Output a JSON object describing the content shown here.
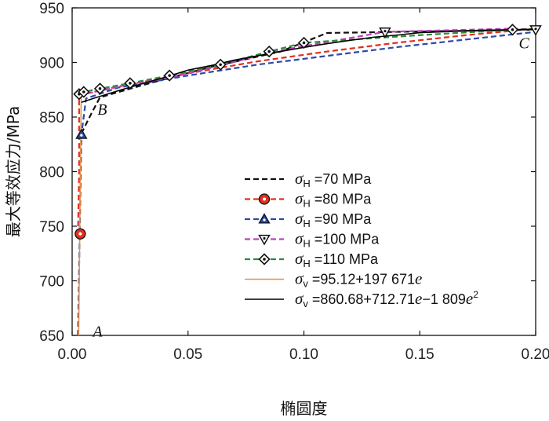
{
  "chart_data": {
    "type": "line",
    "xlabel": "椭圆度",
    "ylabel": "最大等效应力/MPa",
    "xlim": [
      0.0,
      0.2
    ],
    "ylim": [
      650,
      950
    ],
    "xticks": [
      "0.00",
      "0.05",
      "0.10",
      "0.15",
      "0.20"
    ],
    "yticks": [
      "650",
      "700",
      "750",
      "800",
      "850",
      "900",
      "950"
    ],
    "annotations": [
      {
        "text": "A",
        "x": 0.011,
        "y": 649
      },
      {
        "text": "B",
        "x": 0.013,
        "y": 852
      },
      {
        "text": "C",
        "x": 0.195,
        "y": 913
      }
    ],
    "series": [
      {
        "name": "σH=70 MPa",
        "sym": "σ",
        "sub": "H",
        "rest": "=70 MPa",
        "color": "#111111",
        "dashed": true,
        "marker": "none",
        "x": [
          0.004,
          0.008,
          0.012,
          0.03,
          0.06,
          0.09,
          0.11,
          0.14,
          0.17,
          0.2
        ],
        "y": [
          835,
          852,
          868,
          879,
          896,
          910,
          927,
          928,
          929,
          930
        ]
      },
      {
        "name": "σH=80 MPa",
        "sym": "σ",
        "sub": "H",
        "rest": "=80 MPa",
        "color": "#e03020",
        "dashed": true,
        "marker": "circle",
        "x": [
          0.0025,
          0.003,
          0.003,
          0.02,
          0.05,
          0.08,
          0.11,
          0.14,
          0.17,
          0.2
        ],
        "y": [
          742,
          800,
          870,
          878,
          890,
          901,
          910,
          918,
          925,
          931
        ],
        "markers_x": [
          0.0035
        ],
        "markers_y": [
          743
        ]
      },
      {
        "name": "σH=90 MPa",
        "sym": "σ",
        "sub": "H",
        "rest": "=90 MPa",
        "color": "#2a4aa8",
        "dashed": true,
        "marker": "triangle-up",
        "x": [
          0.0025,
          0.004,
          0.006,
          0.02,
          0.05,
          0.08,
          0.11,
          0.14,
          0.17,
          0.2
        ],
        "y": [
          650,
          834,
          867,
          877,
          888,
          898,
          906,
          914,
          921,
          928
        ],
        "markers_x": [
          0.004
        ],
        "markers_y": [
          834
        ]
      },
      {
        "name": "σH=100 MPa",
        "sym": "σ",
        "sub": "H",
        "rest": "=100 MPa",
        "color": "#c040c0",
        "dashed": true,
        "marker": "triangle-down",
        "x": [
          0.003,
          0.012,
          0.025,
          0.042,
          0.064,
          0.085,
          0.1,
          0.135,
          0.19,
          0.2
        ],
        "y": [
          870,
          874,
          880,
          886,
          897,
          909,
          915,
          928,
          931,
          930
        ],
        "markers_x": [
          0.135,
          0.2
        ],
        "markers_y": [
          928,
          930
        ]
      },
      {
        "name": "σH=110 MPa",
        "sym": "σ",
        "sub": "H",
        "rest": "=110 MPa",
        "color": "#2e8b3a",
        "dashed": true,
        "marker": "diamond",
        "x": [
          0.003,
          0.005,
          0.012,
          0.025,
          0.042,
          0.064,
          0.085,
          0.1,
          0.15,
          0.19,
          0.2
        ],
        "y": [
          871,
          873,
          876,
          881,
          888,
          898,
          910,
          918,
          925,
          930,
          930
        ],
        "markers_x": [
          0.003,
          0.005,
          0.012,
          0.025,
          0.042,
          0.064,
          0.085,
          0.1,
          0.19
        ],
        "markers_y": [
          871,
          873,
          876,
          881,
          888,
          898,
          910,
          918,
          930
        ]
      },
      {
        "name": "σv=95.12+197 671e",
        "sym": "σ",
        "sub": "v",
        "rest": "=95.12+197 671",
        "tail": "e",
        "color": "#e8904a",
        "dashed": false,
        "marker": "none",
        "x": [
          0.0028,
          0.00392
        ],
        "y": [
          650,
          871
        ]
      },
      {
        "name": "σv=860.68+712.71e−1 809e²",
        "sym": "σ",
        "sub": "v",
        "rest": "=860.68+712.71",
        "tail": "e",
        "rest2": "−1 809",
        "tail2": "e",
        "sup": "2",
        "color": "#000000",
        "dashed": false,
        "marker": "none",
        "x": [
          0.004,
          0.01,
          0.02,
          0.03,
          0.04,
          0.05,
          0.06,
          0.07,
          0.08,
          0.09,
          0.1,
          0.11,
          0.12,
          0.13,
          0.14,
          0.15,
          0.16,
          0.17,
          0.18,
          0.19,
          0.2
        ],
        "y": [
          863.5,
          867.6,
          874.2,
          880.4,
          886.3,
          893.0,
          897.2,
          902.1,
          906.1,
          910.1,
          913.8,
          917.2,
          920.3,
          923.1,
          925.0,
          927.3,
          928.1,
          929.0,
          929.6,
          930.0,
          930.5
        ]
      }
    ]
  }
}
